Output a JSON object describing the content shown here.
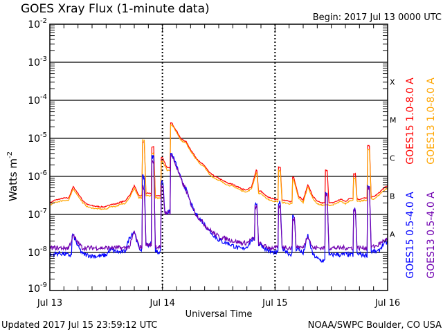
{
  "chart_data": {
    "type": "line",
    "title": "GOES Xray Flux (1-minute data)",
    "begin_label": "Begin:  2017 Jul 13 0000 UTC",
    "xlabel": "Universal Time",
    "ylabel": "Watts m",
    "ylabel_superscript": "-2",
    "y_scale": "log",
    "ylim": [
      1e-09,
      0.01
    ],
    "y_ticks": [
      {
        "base": "10",
        "exp": "-2",
        "value": 0.01
      },
      {
        "base": "10",
        "exp": "-3",
        "value": 0.001
      },
      {
        "base": "10",
        "exp": "-4",
        "value": 0.0001
      },
      {
        "base": "10",
        "exp": "-5",
        "value": 1e-05
      },
      {
        "base": "10",
        "exp": "-6",
        "value": 1e-06
      },
      {
        "base": "10",
        "exp": "-7",
        "value": 1e-07
      },
      {
        "base": "10",
        "exp": "-8",
        "value": 1e-08
      },
      {
        "base": "10",
        "exp": "-9",
        "value": 1e-09
      }
    ],
    "x_unit": "hours since 2017 Jul 13 0000 UTC",
    "xlim": [
      0,
      72
    ],
    "x_ticks": [
      {
        "label": "Jul 13",
        "hour": 0
      },
      {
        "label": "Jul 14",
        "hour": 24
      },
      {
        "label": "Jul 15",
        "hour": 48
      },
      {
        "label": "Jul 16",
        "hour": 72
      }
    ],
    "flare_classes": [
      {
        "label": "X",
        "log10_flux": -3.5
      },
      {
        "label": "M",
        "log10_flux": -4.5
      },
      {
        "label": "C",
        "log10_flux": -5.5
      },
      {
        "label": "B",
        "log10_flux": -6.5
      },
      {
        "label": "A",
        "log10_flux": -7.5
      }
    ],
    "grid": true,
    "x_hours": "0..72 step 1",
    "series": [
      {
        "name": "GOES15 1.0-8.0 A",
        "color": "#ff0000",
        "log10_flux": [
          -6.7,
          -6.63,
          -6.6,
          -6.57,
          -6.57,
          -6.27,
          -6.45,
          -6.63,
          -6.74,
          -6.77,
          -6.79,
          -6.8,
          -6.8,
          -6.73,
          -6.73,
          -6.68,
          -6.65,
          -6.5,
          -6.25,
          -6.51,
          -5.1,
          -6.45,
          -5.23,
          -6.51,
          -5.5,
          -5.78,
          -4.6,
          -4.8,
          -5.02,
          -5.08,
          -5.29,
          -5.48,
          -5.63,
          -5.72,
          -5.9,
          -5.99,
          -6.05,
          -6.12,
          -6.18,
          -6.21,
          -6.27,
          -6.33,
          -6.36,
          -6.27,
          -5.84,
          -6.39,
          -6.51,
          -6.57,
          -6.6,
          -5.75,
          -6.63,
          -6.66,
          -6.02,
          -6.51,
          -6.63,
          -6.21,
          -6.51,
          -6.66,
          -6.7,
          -5.84,
          -6.7,
          -6.66,
          -6.6,
          -6.66,
          -6.57,
          -5.93,
          -6.6,
          -6.57,
          -5.2,
          -6.54,
          -6.45,
          -6.33,
          -6.24
        ]
      },
      {
        "name": "GOES13 1.0-8.0 A",
        "color": "#ffa500",
        "log10_flux": [
          -6.76,
          -6.69,
          -6.66,
          -6.63,
          -6.63,
          -6.33,
          -6.51,
          -6.69,
          -6.8,
          -6.83,
          -6.85,
          -6.86,
          -6.86,
          -6.79,
          -6.79,
          -6.74,
          -6.71,
          -6.56,
          -6.31,
          -6.57,
          -5.05,
          -6.51,
          -5.4,
          -6.57,
          -5.6,
          -5.84,
          -4.64,
          -4.84,
          -5.06,
          -5.12,
          -5.33,
          -5.52,
          -5.67,
          -5.76,
          -5.95,
          -6.04,
          -6.1,
          -6.17,
          -6.23,
          -6.26,
          -6.32,
          -6.38,
          -6.41,
          -6.32,
          -5.92,
          -6.45,
          -6.57,
          -6.63,
          -6.66,
          -5.85,
          -6.69,
          -6.72,
          -6.1,
          -6.57,
          -6.69,
          -6.27,
          -6.57,
          -6.72,
          -6.76,
          -6.75,
          -6.76,
          -6.72,
          -6.66,
          -6.72,
          -6.63,
          -6.05,
          -6.66,
          -6.63,
          -5.3,
          -6.6,
          -6.51,
          -6.39,
          -6.3
        ]
      },
      {
        "name": "GOES15 0.5-4.0 A",
        "color": "#0000ff",
        "log10_flux": [
          -8.07,
          -8.04,
          -8.02,
          -8.04,
          -8.07,
          -7.55,
          -7.85,
          -8.04,
          -8.07,
          -8.09,
          -8.1,
          -8.09,
          -8.07,
          -7.91,
          -7.98,
          -7.99,
          -7.98,
          -7.6,
          -7.43,
          -7.91,
          -6.02,
          -7.79,
          -5.48,
          -7.98,
          -6.15,
          -6.94,
          -5.41,
          -5.72,
          -6.09,
          -6.33,
          -6.7,
          -6.97,
          -7.12,
          -7.27,
          -7.43,
          -7.55,
          -7.67,
          -7.73,
          -7.76,
          -7.82,
          -7.88,
          -7.91,
          -7.85,
          -7.67,
          -6.7,
          -7.79,
          -7.91,
          -7.98,
          -8.01,
          -6.7,
          -7.91,
          -8.04,
          -7.06,
          -7.91,
          -8.04,
          -7.55,
          -8.04,
          -8.16,
          -8.22,
          -6.45,
          -8.07,
          -8.04,
          -8.07,
          -8.04,
          -8.07,
          -6.88,
          -8.04,
          -8.07,
          -6.27,
          -7.98,
          -7.98,
          -7.79,
          -7.73
        ]
      },
      {
        "name": "GOES13 0.5-4.0 A",
        "color": "#7000b0",
        "log10_flux": [
          -7.88,
          -7.88,
          -7.88,
          -7.88,
          -7.88,
          -7.55,
          -7.75,
          -7.88,
          -7.88,
          -7.88,
          -7.88,
          -7.88,
          -7.88,
          -7.88,
          -7.88,
          -7.88,
          -7.88,
          -7.85,
          -7.45,
          -7.85,
          -6.3,
          -7.8,
          -5.6,
          -7.85,
          -6.3,
          -6.95,
          -5.45,
          -5.75,
          -6.1,
          -6.35,
          -6.7,
          -6.97,
          -7.12,
          -7.27,
          -7.4,
          -7.5,
          -7.58,
          -7.62,
          -7.65,
          -7.7,
          -7.72,
          -7.75,
          -7.75,
          -7.65,
          -6.8,
          -7.78,
          -7.85,
          -7.88,
          -7.88,
          -6.8,
          -7.85,
          -7.88,
          -7.1,
          -7.85,
          -7.88,
          -7.55,
          -7.88,
          -7.88,
          -7.88,
          -6.5,
          -7.88,
          -7.88,
          -7.88,
          -7.88,
          -7.88,
          -6.9,
          -7.88,
          -7.88,
          -6.3,
          -7.85,
          -7.8,
          -7.7,
          -7.65
        ]
      }
    ]
  },
  "footer": {
    "updated": "Updated 2017 Jul 15 23:59:12 UTC",
    "source": "NOAA/SWPC Boulder, CO USA"
  }
}
